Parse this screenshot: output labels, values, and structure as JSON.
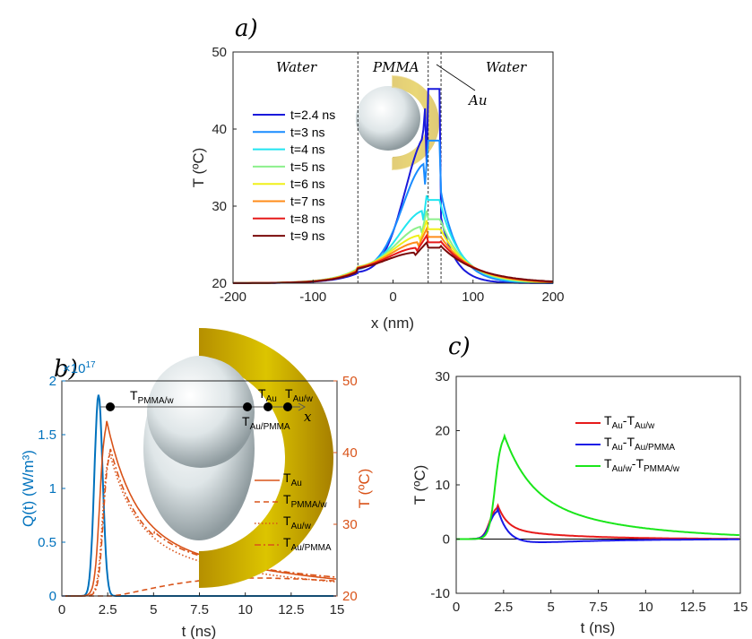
{
  "labels": {
    "panel_a": "a)",
    "panel_b": "b)",
    "panel_c": "c)",
    "water_left": "Water",
    "pmma": "PMMA",
    "water_right": "Water",
    "au": "Au",
    "x_axis_letter": "x",
    "pt_pmma_w": "T",
    "pt_pmma_w_sub": "PMMA/w",
    "pt_au": "T",
    "pt_au_sub": "Au",
    "pt_au_w": "T",
    "pt_au_w_sub": "Au/w",
    "pt_au_pmma": "T",
    "pt_au_pmma_sub": "Au/PMMA",
    "exp_base": "×10",
    "exp_power": "17"
  },
  "colors": {
    "blue_axis": "#0072BD",
    "orange_axis": "#D95319",
    "gold": "#C8A400"
  },
  "chart_data": [
    {
      "type": "line",
      "id": "a",
      "xlabel": "x (nm)",
      "ylabel": "T (ºC)",
      "xlim": [
        -200,
        200
      ],
      "ylim": [
        20,
        50
      ],
      "xticks": [
        -200,
        -100,
        0,
        100,
        200
      ],
      "yticks": [
        20,
        30,
        40,
        50
      ],
      "vlines": [
        -44,
        44,
        60
      ],
      "series": [
        {
          "name": "t=2.4 ns",
          "color": "#1A1ADB",
          "peak": 45.2,
          "mid": 45.0,
          "in": 35.3,
          "b1": 21.3,
          "b2": 28.5
        },
        {
          "name": "t=3 ns",
          "color": "#1A8CFF",
          "peak": 38.5,
          "mid": 38.4,
          "in": 32.5,
          "b1": 21.6,
          "b2": 31.8
        },
        {
          "name": "t=4 ns",
          "color": "#22E5F0",
          "peak": 33.0,
          "mid": 30.8,
          "in": 27.8,
          "b1": 21.9,
          "b2": 30.0
        },
        {
          "name": "t=5 ns",
          "color": "#8CF08C",
          "peak": 30.4,
          "mid": 28.3,
          "in": 26.2,
          "b1": 21.9,
          "b2": 28.0
        },
        {
          "name": "t=6 ns",
          "color": "#F0F01A",
          "peak": 28.8,
          "mid": 27.0,
          "in": 25.3,
          "b1": 21.8,
          "b2": 26.9
        },
        {
          "name": "t=7 ns",
          "color": "#FF8C1A",
          "peak": 27.5,
          "mid": 26.0,
          "in": 24.6,
          "b1": 21.7,
          "b2": 26.0
        },
        {
          "name": "t=8 ns",
          "color": "#E61A1A",
          "peak": 26.5,
          "mid": 25.3,
          "in": 24.0,
          "b1": 21.6,
          "b2": 25.4
        },
        {
          "name": "t=9 ns",
          "color": "#7A0A0A",
          "peak": 25.5,
          "mid": 24.6,
          "in": 23.5,
          "b1": 21.5,
          "b2": 24.8
        }
      ]
    },
    {
      "type": "line",
      "id": "b",
      "xlabel": "t (ns)",
      "ylabel_left": "Q(t) (W/m³)",
      "ylabel_right": "T (ºC)",
      "xlim": [
        0,
        15
      ],
      "ylim_left": [
        0,
        2
      ],
      "ylim_right": [
        20,
        50
      ],
      "xticks": [
        0,
        2.5,
        5,
        7.5,
        10,
        12.5,
        15
      ],
      "yticks_left": [
        0,
        0.5,
        1,
        1.5,
        2
      ],
      "yticks_right": [
        20,
        30,
        40,
        50
      ],
      "q_series": {
        "peak_t": 2.0,
        "peak_q": 1.87,
        "width": 0.32,
        "color": "#0072BD"
      },
      "series": [
        {
          "name": "T",
          "sub": "Au",
          "style": "solid",
          "peak": 45.0,
          "peak_t": 2.4
        },
        {
          "name": "T",
          "sub": "PMMA/w",
          "style": "dashed",
          "peak": 22.5,
          "peak_t": 10.5
        },
        {
          "name": "T",
          "sub": "Au/w",
          "style": "dotted",
          "peak": 40.5,
          "peak_t": 2.55
        },
        {
          "name": "T",
          "sub": "Au/PMMA",
          "style": "dashdot",
          "peak": 41.0,
          "peak_t": 2.6
        }
      ]
    },
    {
      "type": "line",
      "id": "c",
      "xlabel": "t (ns)",
      "ylabel": "T (ºC)",
      "xlim": [
        0,
        15
      ],
      "ylim": [
        -10,
        30
      ],
      "xticks": [
        0,
        2.5,
        5,
        7.5,
        10,
        12.5,
        15
      ],
      "yticks": [
        -10,
        0,
        10,
        20,
        30
      ],
      "series": [
        {
          "name": "T",
          "sub": "Au",
          "name2": "-T",
          "sub2": "Au/w",
          "color": "#E61A1A",
          "peak": 6.2,
          "peak_t": 2.2
        },
        {
          "name": "T",
          "sub": "Au",
          "name2": "-T",
          "sub2": "Au/PMMA",
          "color": "#1A1AE6",
          "peak": 5.5,
          "peak_t": 2.2
        },
        {
          "name": "T",
          "sub": "Au/w",
          "name2": "-T",
          "sub2": "PMMA/w",
          "color": "#1AE61A",
          "peak": 19.5,
          "peak_t": 2.5
        }
      ]
    }
  ]
}
